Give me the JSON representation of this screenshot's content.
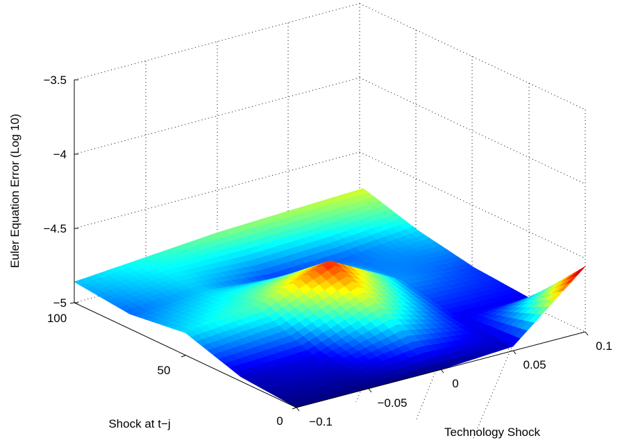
{
  "chart_data": {
    "type": "surface",
    "zlabel": "Euler Equation Error (Log 10)",
    "xlabel": "Technology Shock",
    "ylabel": "Shock at t−j",
    "x_ticks": [
      "−0.1",
      "−0.05",
      "0",
      "0.05",
      "0.1"
    ],
    "y_ticks": [
      "0",
      "50",
      "100"
    ],
    "z_ticks": [
      "−5",
      "−4.5",
      "−4",
      "−3.5"
    ],
    "xlim": [
      -0.1,
      0.1
    ],
    "ylim": [
      0,
      100
    ],
    "zlim": [
      -5,
      -3.5
    ],
    "grid": true,
    "colormap": "jet",
    "x_grid": [
      -0.1,
      -0.05,
      0,
      0.05,
      0.1
    ],
    "y_grid": [
      0,
      25,
      50,
      75,
      100
    ],
    "z_values": [
      [
        -5.0,
        -5.0,
        -5.0,
        -4.97,
        -4.56
      ],
      [
        -4.97,
        -4.95,
        -4.8,
        -4.95,
        -4.95
      ],
      [
        -4.85,
        -4.8,
        -4.62,
        -4.88,
        -4.92
      ],
      [
        -4.9,
        -4.86,
        -4.92,
        -4.9,
        -4.85
      ],
      [
        -4.86,
        -4.82,
        -4.78,
        -4.76,
        -4.74
      ]
    ]
  }
}
